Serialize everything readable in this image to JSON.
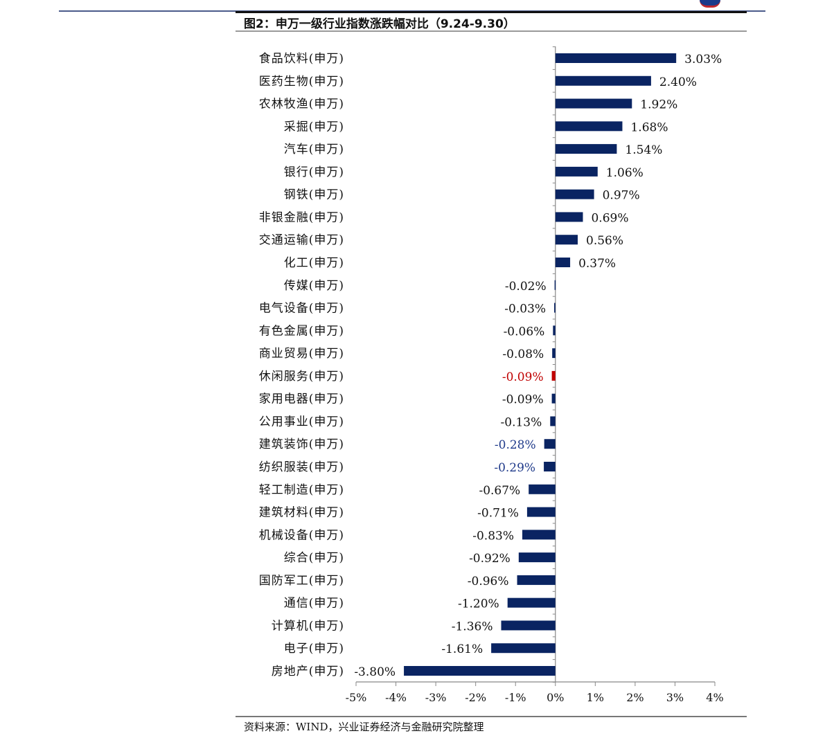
{
  "title": "图2：申万一级行业指数涨跌幅对比（9.24-9.30）",
  "source": "资料来源：WIND，兴业证券经济与金融研究院整理",
  "colors": {
    "bar": "#0a2462",
    "highlight_red": "#c00000",
    "label_blue": "#1f3a8a",
    "label_default": "#111111"
  },
  "chart_data": {
    "type": "bar",
    "orientation": "horizontal",
    "title": "申万一级行业指数涨跌幅对比（9.24-9.30）",
    "xlabel": "",
    "ylabel": "",
    "xlim": [
      -5,
      4
    ],
    "unit": "%",
    "x_ticks": [
      "-5%",
      "-4%",
      "-3%",
      "-2%",
      "-1%",
      "0%",
      "1%",
      "2%",
      "3%",
      "4%"
    ],
    "categories": [
      "食品饮料(申万)",
      "医药生物(申万)",
      "农林牧渔(申万)",
      "采掘(申万)",
      "汽车(申万)",
      "银行(申万)",
      "钢铁(申万)",
      "非银金融(申万)",
      "交通运输(申万)",
      "化工(申万)",
      "传媒(申万)",
      "电气设备(申万)",
      "有色金属(申万)",
      "商业贸易(申万)",
      "休闲服务(申万)",
      "家用电器(申万)",
      "公用事业(申万)",
      "建筑装饰(申万)",
      "纺织服装(申万)",
      "轻工制造(申万)",
      "建筑材料(申万)",
      "机械设备(申万)",
      "综合(申万)",
      "国防军工(申万)",
      "通信(申万)",
      "计算机(申万)",
      "电子(申万)",
      "房地产(申万)"
    ],
    "values": [
      3.03,
      2.4,
      1.92,
      1.68,
      1.54,
      1.06,
      0.97,
      0.69,
      0.56,
      0.37,
      -0.02,
      -0.03,
      -0.06,
      -0.08,
      -0.09,
      -0.09,
      -0.13,
      -0.28,
      -0.29,
      -0.67,
      -0.71,
      -0.83,
      -0.92,
      -0.96,
      -1.2,
      -1.36,
      -1.61,
      -3.8
    ],
    "labels": [
      "3.03%",
      "2.40%",
      "1.92%",
      "1.68%",
      "1.54%",
      "1.06%",
      "0.97%",
      "0.69%",
      "0.56%",
      "0.37%",
      "-0.02%",
      "-0.03%",
      "-0.06%",
      "-0.08%",
      "-0.09%",
      "-0.09%",
      "-0.13%",
      "-0.28%",
      "-0.29%",
      "-0.67%",
      "-0.71%",
      "-0.83%",
      "-0.92%",
      "-0.96%",
      "-1.20%",
      "-1.36%",
      "-1.61%",
      "-3.80%"
    ],
    "highlight_red": [
      "休闲服务(申万)"
    ],
    "highlight_blue_label": [
      "建筑装饰(申万)",
      "纺织服装(申万)"
    ],
    "grid": false,
    "legend": "none"
  }
}
